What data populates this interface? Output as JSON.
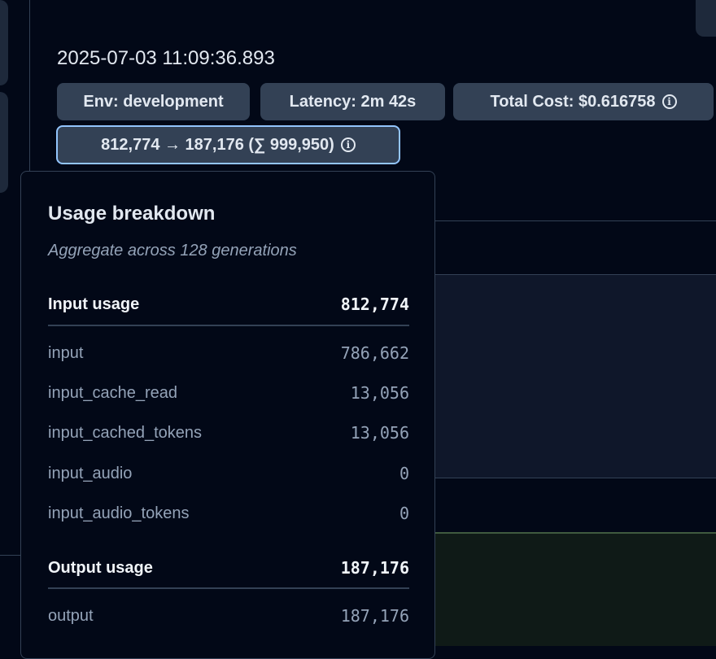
{
  "trace": {
    "timestamp": "2025-07-03 11:09:36.893",
    "badges": {
      "env": "Env: development",
      "latency": "Latency: 2m 42s",
      "total_cost": "Total Cost: $0.616758",
      "tokens": "812,774 → 187,176 (∑ 999,950)"
    }
  },
  "usage_popover": {
    "title": "Usage breakdown",
    "subtitle": "Aggregate across 128 generations",
    "input": {
      "label": "Input usage",
      "total": "812,774",
      "rows": [
        {
          "label": "input",
          "value": "786,662"
        },
        {
          "label": "input_cache_read",
          "value": "13,056"
        },
        {
          "label": "input_cached_tokens",
          "value": "13,056"
        },
        {
          "label": "input_audio",
          "value": "0"
        },
        {
          "label": "input_audio_tokens",
          "value": "0"
        }
      ]
    },
    "output": {
      "label": "Output usage",
      "total": "187,176",
      "rows": [
        {
          "label": "output",
          "value": "187,176"
        }
      ]
    }
  },
  "colors": {
    "background": "#020817",
    "badge": "#334155",
    "focus_ring": "#93c5fd",
    "panel": "#0f172a"
  }
}
